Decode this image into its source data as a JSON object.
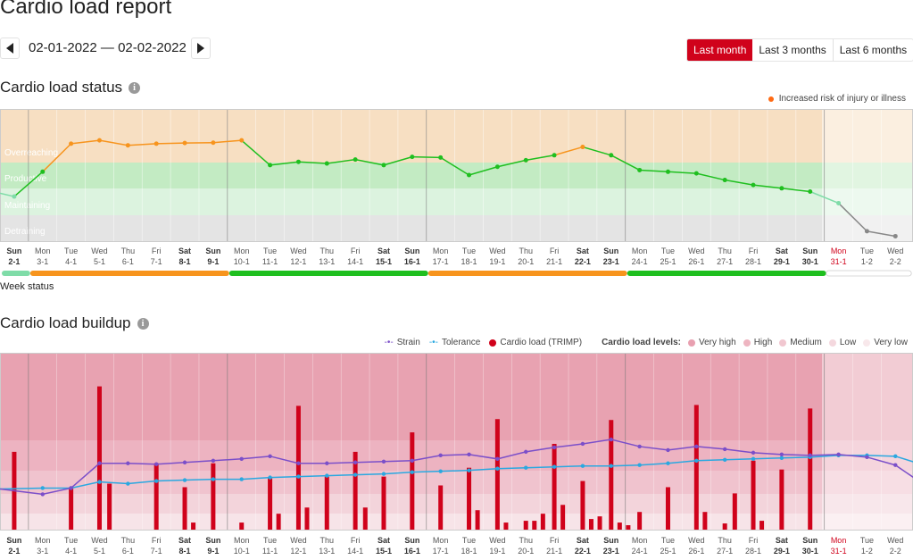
{
  "page": {
    "title": "Cardio load report"
  },
  "nav": {
    "date_range": "02-01-2022 — 02-02-2022",
    "prev_icon": "triangle-left-icon",
    "next_icon": "triangle-right-icon"
  },
  "period_tabs": [
    {
      "label": "Last month",
      "active": true
    },
    {
      "label": "Last 3 months",
      "active": false
    },
    {
      "label": "Last 6 months",
      "active": false
    }
  ],
  "status_section": {
    "title": "Cardio load status",
    "legend": {
      "label": "Increased risk of injury or illness",
      "color": "#ff6a13"
    },
    "week_status_label": "Week status"
  },
  "buildup_section": {
    "title": "Cardio load buildup",
    "legend": {
      "strain": "Strain",
      "tolerance": "Tolerance",
      "trimp": "Cardio load (TRIMP)",
      "levels_label": "Cardio load levels:",
      "very_high": "Very high",
      "high": "High",
      "medium": "Medium",
      "low": "Low",
      "very_low": "Very low"
    }
  },
  "colors": {
    "accent": "#d0021b",
    "strain": "#7b4fc9",
    "tolerance": "#2aa8e0",
    "trimp": "#d0021b",
    "status_orange": "#f7941d",
    "status_green": "#1fbf1f",
    "status_light": "#7fdca8",
    "status_grey": "#888888"
  },
  "chart_data": [
    {
      "type": "line",
      "title": "Cardio load status",
      "zones": [
        "Overreaching",
        "Productive",
        "Maintaining",
        "Detraining"
      ],
      "days": [
        {
          "d": "Sun",
          "n": "2-1",
          "w": true
        },
        {
          "d": "Mon",
          "n": "3-1"
        },
        {
          "d": "Tue",
          "n": "4-1"
        },
        {
          "d": "Wed",
          "n": "5-1"
        },
        {
          "d": "Thu",
          "n": "6-1"
        },
        {
          "d": "Fri",
          "n": "7-1"
        },
        {
          "d": "Sat",
          "n": "8-1",
          "w": true
        },
        {
          "d": "Sun",
          "n": "9-1",
          "w": true
        },
        {
          "d": "Mon",
          "n": "10-1"
        },
        {
          "d": "Tue",
          "n": "11-1"
        },
        {
          "d": "Wed",
          "n": "12-1"
        },
        {
          "d": "Thu",
          "n": "13-1"
        },
        {
          "d": "Fri",
          "n": "14-1"
        },
        {
          "d": "Sat",
          "n": "15-1",
          "w": true
        },
        {
          "d": "Sun",
          "n": "16-1",
          "w": true
        },
        {
          "d": "Mon",
          "n": "17-1"
        },
        {
          "d": "Tue",
          "n": "18-1"
        },
        {
          "d": "Wed",
          "n": "19-1"
        },
        {
          "d": "Thu",
          "n": "20-1"
        },
        {
          "d": "Fri",
          "n": "21-1"
        },
        {
          "d": "Sat",
          "n": "22-1",
          "w": true
        },
        {
          "d": "Sun",
          "n": "23-1",
          "w": true
        },
        {
          "d": "Mon",
          "n": "24-1"
        },
        {
          "d": "Tue",
          "n": "25-1"
        },
        {
          "d": "Wed",
          "n": "26-1"
        },
        {
          "d": "Thu",
          "n": "27-1"
        },
        {
          "d": "Fri",
          "n": "28-1"
        },
        {
          "d": "Sat",
          "n": "29-1",
          "w": true
        },
        {
          "d": "Sun",
          "n": "30-1",
          "w": true
        },
        {
          "d": "Mon",
          "n": "31-1",
          "today": true
        },
        {
          "d": "Tue",
          "n": "1-2"
        },
        {
          "d": "Wed",
          "n": "2-2"
        }
      ],
      "status_values": [
        1.45,
        1.35,
        2.1,
        2.95,
        3.05,
        2.9,
        2.95,
        2.97,
        2.98,
        3.05,
        2.3,
        2.4,
        2.35,
        2.47,
        2.3,
        2.55,
        2.53,
        2.0,
        2.25,
        2.45,
        2.6,
        2.85,
        2.6,
        2.15,
        2.1,
        2.05,
        1.85,
        1.7,
        1.6,
        1.5,
        1.15,
        0.3,
        0.15
      ],
      "status_x": [
        -0.5,
        0,
        1,
        2,
        3,
        4,
        5,
        6,
        7,
        8,
        9,
        10,
        11,
        12,
        13,
        14,
        15,
        16,
        17,
        18,
        19,
        20,
        21,
        22,
        23,
        24,
        25,
        26,
        27,
        28,
        29,
        30,
        31
      ],
      "status_colors": [
        "light",
        "light",
        "green",
        "orange",
        "orange",
        "orange",
        "orange",
        "orange",
        "orange",
        "orange",
        "green",
        "green",
        "green",
        "green",
        "green",
        "green",
        "green",
        "green",
        "green",
        "green",
        "green",
        "orange",
        "green",
        "green",
        "green",
        "green",
        "green",
        "green",
        "green",
        "green",
        "light",
        "grey",
        "grey"
      ],
      "week_status": [
        {
          "from": 0,
          "to": 0.9,
          "color": "light"
        },
        {
          "from": 1,
          "to": 7.9,
          "color": "orange"
        },
        {
          "from": 8,
          "to": 14.9,
          "color": "green"
        },
        {
          "from": 15,
          "to": 21.9,
          "color": "orange"
        },
        {
          "from": 22,
          "to": 28.9,
          "color": "green"
        },
        {
          "from": 29,
          "to": 31.9,
          "color": "empty"
        }
      ]
    },
    {
      "type": "bar",
      "title": "Cardio load buildup",
      "series": [
        {
          "name": "Cardio load (TRIMP)",
          "values": [
            [
              0,
              88
            ],
            [
              2,
              48
            ],
            [
              3,
              162
            ],
            [
              3.35,
              52
            ],
            [
              5,
              75
            ],
            [
              6,
              48
            ],
            [
              6.3,
              8
            ],
            [
              7,
              75
            ],
            [
              8,
              8
            ],
            [
              9,
              58
            ],
            [
              9.3,
              18
            ],
            [
              10,
              140
            ],
            [
              10.3,
              25
            ],
            [
              11,
              60
            ],
            [
              12,
              88
            ],
            [
              12.35,
              25
            ],
            [
              13,
              60
            ],
            [
              14,
              110
            ],
            [
              15,
              50
            ],
            [
              16,
              70
            ],
            [
              16.3,
              22
            ],
            [
              17,
              125
            ],
            [
              17.3,
              8
            ],
            [
              18,
              10
            ],
            [
              18.3,
              10
            ],
            [
              18.6,
              18
            ],
            [
              19,
              97
            ],
            [
              19.3,
              28
            ],
            [
              20,
              55
            ],
            [
              20.3,
              12
            ],
            [
              20.6,
              15
            ],
            [
              21,
              124
            ],
            [
              21.3,
              8
            ],
            [
              21.6,
              5
            ],
            [
              22,
              20
            ],
            [
              23,
              48
            ],
            [
              24,
              141
            ],
            [
              24.3,
              20
            ],
            [
              25,
              7
            ],
            [
              25.35,
              41
            ],
            [
              26,
              78
            ],
            [
              26.3,
              10
            ],
            [
              27,
              68
            ],
            [
              28,
              137
            ]
          ]
        },
        {
          "name": "Strain",
          "values": [
            46,
            40,
            47,
            75,
            75,
            74,
            76,
            78,
            80,
            83,
            75,
            75,
            76,
            77,
            78,
            84,
            85,
            80,
            88,
            93,
            97,
            102,
            94,
            90,
            94,
            91,
            87,
            85,
            84,
            85,
            82,
            73,
            51
          ]
        },
        {
          "name": "Tolerance",
          "values": [
            46,
            47,
            47,
            54,
            52,
            55,
            56,
            57,
            57,
            59,
            60,
            61,
            62,
            63,
            65,
            66,
            67,
            69,
            70,
            71,
            72,
            72,
            73,
            75,
            78,
            79,
            80,
            81,
            82,
            84,
            84,
            83,
            73
          ]
        }
      ],
      "ylim": [
        0,
        200
      ]
    }
  ]
}
